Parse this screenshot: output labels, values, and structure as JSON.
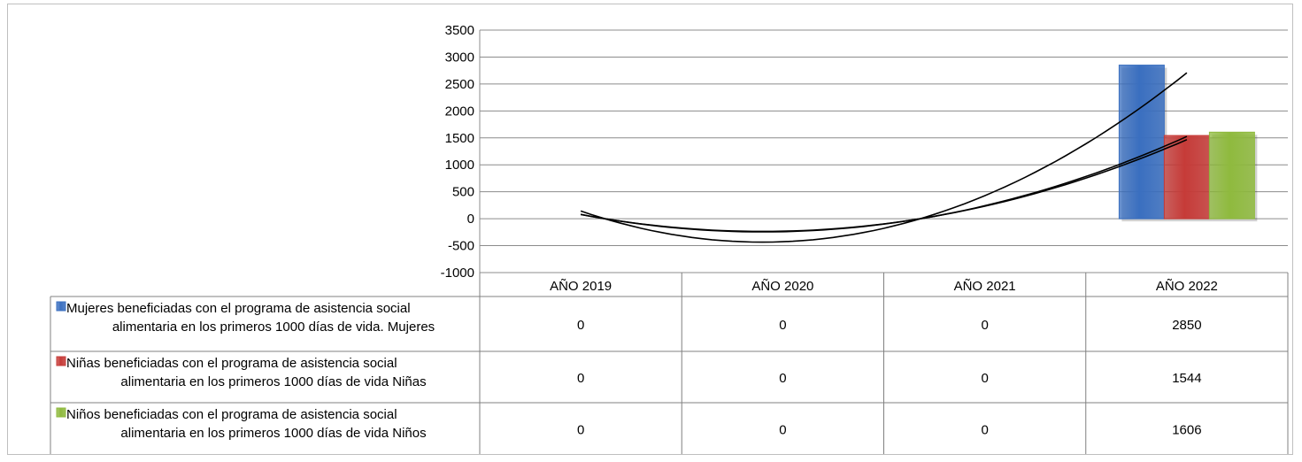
{
  "chart_data": {
    "type": "bar",
    "title": "",
    "xlabel": "",
    "ylabel": "",
    "categories": [
      "AÑO 2019",
      "AÑO 2020",
      "AÑO 2021",
      "AÑO 2022"
    ],
    "ylim": [
      -1000,
      3500
    ],
    "yticks": [
      3500,
      3000,
      2500,
      2000,
      1500,
      1000,
      500,
      0,
      -500,
      -1000
    ],
    "legend_position": "data-table",
    "grid": true,
    "trendlines": "polynomial",
    "series": [
      {
        "name_lines": [
          "Mujeres beneficiadas con el programa de asistencia social",
          "alimentaria en los primeros 1000 días de vida. Mujeres"
        ],
        "color": "#3a6fc0",
        "values": [
          0,
          0,
          0,
          2850
        ],
        "labels": [
          "0",
          "0",
          "0",
          "2850"
        ]
      },
      {
        "name_lines": [
          "Niñas beneficiadas con el programa de asistencia social",
          "alimentaria en los primeros 1000 días de vida Niñas"
        ],
        "color": "#c63b38",
        "values": [
          0,
          0,
          0,
          1544
        ],
        "labels": [
          "0",
          "0",
          "0",
          "1544"
        ]
      },
      {
        "name_lines": [
          "Niños beneficiadas con el programa de asistencia social",
          "alimentaria en los primeros 1000 días de vida Niños"
        ],
        "color": "#8fba3e",
        "values": [
          0,
          0,
          0,
          1606
        ],
        "labels": [
          "0",
          "0",
          "0",
          "1606"
        ]
      }
    ]
  }
}
